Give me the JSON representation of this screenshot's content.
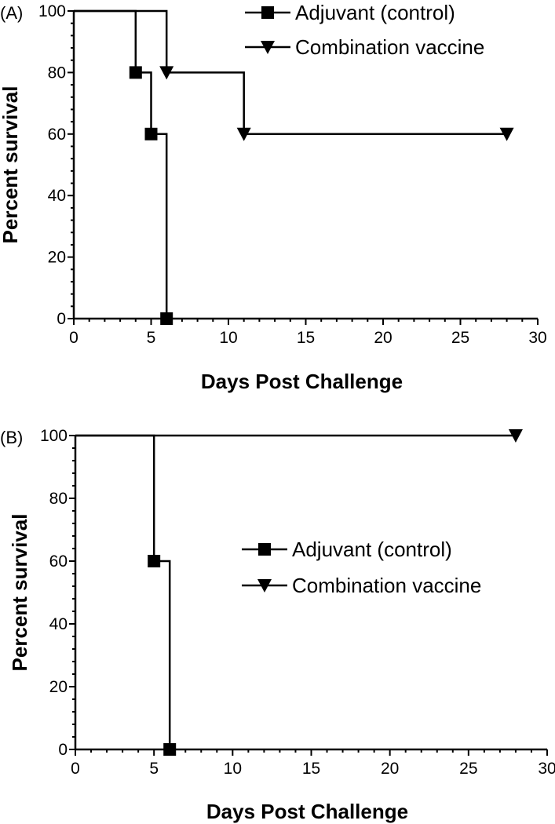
{
  "chart_data": [
    {
      "type": "line",
      "step": true,
      "panel_label": "(A)",
      "xlabel": "Days Post Challenge",
      "ylabel": "Percent survival",
      "xlim": [
        0,
        30
      ],
      "ylim": [
        0,
        100
      ],
      "x_ticks": [
        0,
        5,
        10,
        15,
        20,
        25,
        30
      ],
      "y_ticks": [
        0,
        20,
        40,
        60,
        80,
        100
      ],
      "grid": false,
      "legend_position": "top-right",
      "series": [
        {
          "name": "Adjuvant (control)",
          "marker": "square",
          "step_x": [
            0,
            4,
            5,
            6
          ],
          "step_y": [
            100,
            80,
            60,
            0
          ],
          "points": [
            {
              "x": 4,
              "y": 80
            },
            {
              "x": 5,
              "y": 60
            },
            {
              "x": 6,
              "y": 0
            }
          ]
        },
        {
          "name": "Combination vaccine",
          "marker": "triangle-down",
          "step_x": [
            0,
            6,
            11,
            28
          ],
          "step_y": [
            100,
            80,
            60,
            60
          ],
          "points": [
            {
              "x": 6,
              "y": 80
            },
            {
              "x": 11,
              "y": 60
            },
            {
              "x": 28,
              "y": 60
            }
          ]
        }
      ]
    },
    {
      "type": "line",
      "step": true,
      "panel_label": "(B)",
      "xlabel": "Days Post Challenge",
      "ylabel": "Percent survival",
      "xlim": [
        0,
        30
      ],
      "ylim": [
        0,
        100
      ],
      "x_ticks": [
        0,
        5,
        10,
        15,
        20,
        25,
        30
      ],
      "y_ticks": [
        0,
        20,
        40,
        60,
        80,
        100
      ],
      "grid": false,
      "legend_position": "center-right",
      "series": [
        {
          "name": "Adjuvant (control)",
          "marker": "square",
          "step_x": [
            0,
            5,
            6
          ],
          "step_y": [
            100,
            60,
            0
          ],
          "points": [
            {
              "x": 5,
              "y": 60
            },
            {
              "x": 6,
              "y": 0
            }
          ]
        },
        {
          "name": "Combination vaccine",
          "marker": "triangle-down",
          "step_x": [
            0,
            28
          ],
          "step_y": [
            100,
            100
          ],
          "points": [
            {
              "x": 28,
              "y": 100
            }
          ]
        }
      ]
    }
  ]
}
